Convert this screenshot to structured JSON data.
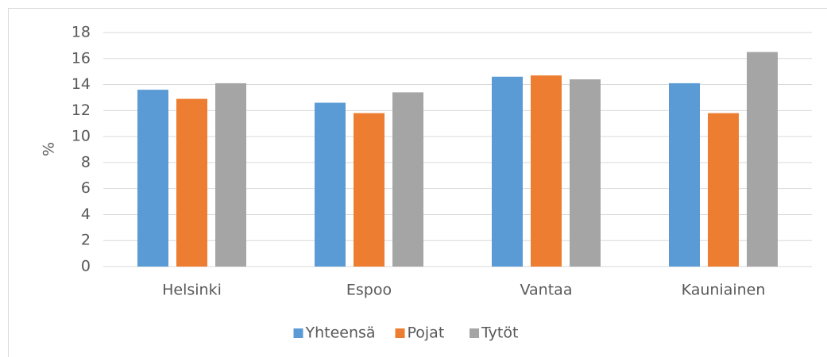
{
  "chart_data": {
    "type": "bar",
    "y_label": "%",
    "categories": [
      "Helsinki",
      "Espoo",
      "Vantaa",
      "Kauniainen"
    ],
    "series": [
      {
        "name": "Yhteensä",
        "color": "#5b9bd5",
        "values": [
          13.6,
          12.6,
          14.6,
          14.1
        ]
      },
      {
        "name": "Pojat",
        "color": "#ed7d31",
        "values": [
          12.9,
          11.8,
          14.7,
          11.8
        ]
      },
      {
        "name": "Tytöt",
        "color": "#a5a5a5",
        "values": [
          14.1,
          13.4,
          14.4,
          16.5
        ]
      }
    ],
    "ylim": [
      0,
      18
    ],
    "yticks": [
      0,
      2,
      4,
      6,
      8,
      10,
      12,
      14,
      16,
      18
    ],
    "grid": true,
    "legend": "bottom"
  }
}
